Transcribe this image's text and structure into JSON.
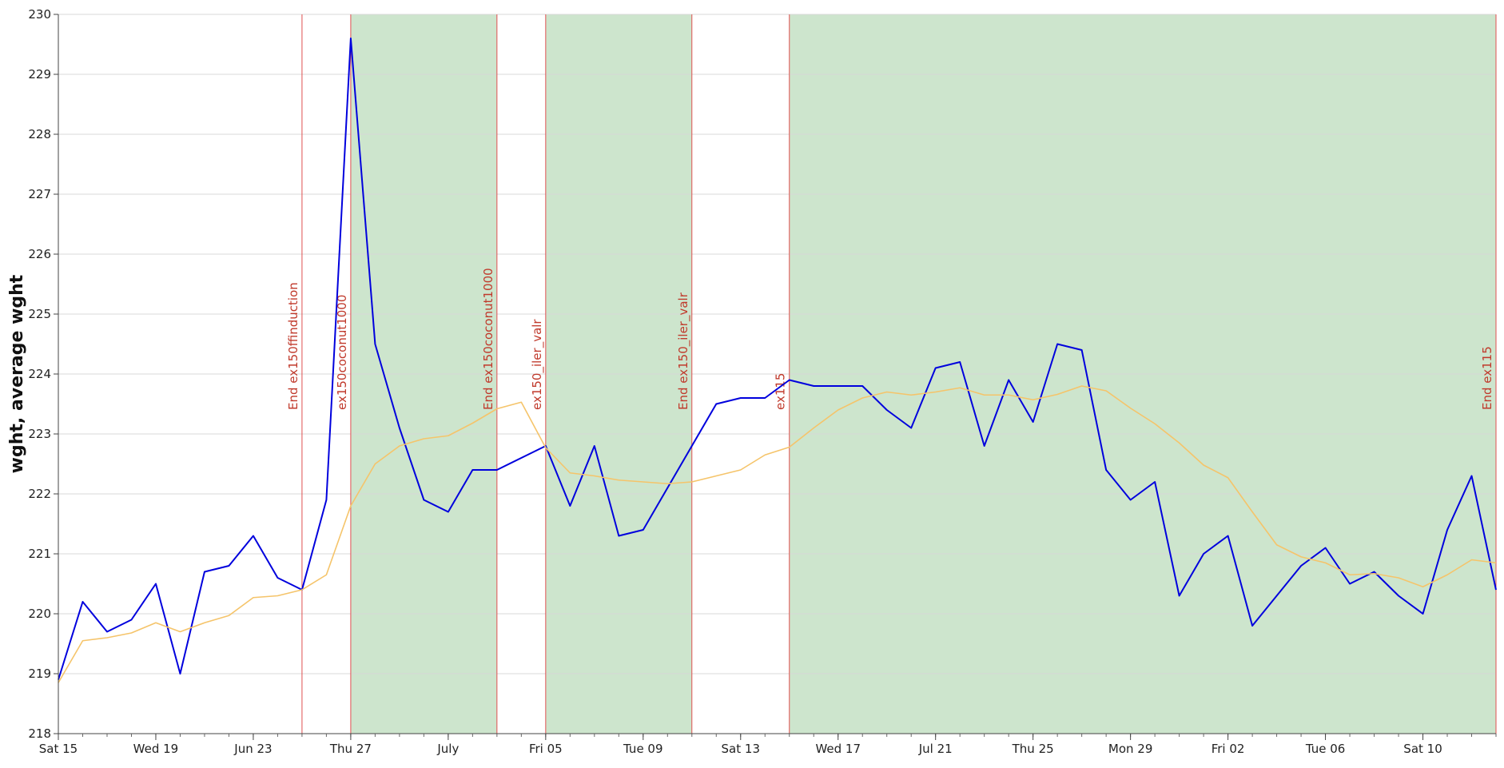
{
  "chart_data": {
    "type": "line",
    "ylabel": "wght, average wght",
    "ylim": [
      218,
      230
    ],
    "yticks": [
      218,
      219,
      220,
      221,
      222,
      223,
      224,
      225,
      226,
      227,
      228,
      229,
      230
    ],
    "grid": true,
    "x_start": "2023-06-15",
    "x_end": "2023-08-13",
    "x_tick_dates": [
      "2023-06-15",
      "2023-06-19",
      "2023-06-23",
      "2023-06-27",
      "2023-07-01",
      "2023-07-05",
      "2023-07-09",
      "2023-07-13",
      "2023-07-17",
      "2023-07-21",
      "2023-07-25",
      "2023-07-29",
      "2023-08-02",
      "2023-08-06",
      "2023-08-10"
    ],
    "x_tick_labels": [
      "Sat 15",
      "Wed 19",
      "Jun 23",
      "Thu 27",
      "July",
      "Fri 05",
      "Tue 09",
      "Sat 13",
      "Wed 17",
      "Jul 21",
      "Thu 25",
      "Mon 29",
      "Fri 02",
      "Tue 06",
      "Sat 10"
    ],
    "series": [
      {
        "color": "#0000dd",
        "points": [
          [
            "2023-06-15",
            218.9
          ],
          [
            "2023-06-16",
            220.2
          ],
          [
            "2023-06-17",
            219.7
          ],
          [
            "2023-06-18",
            219.9
          ],
          [
            "2023-06-19",
            220.5
          ],
          [
            "2023-06-20",
            219.0
          ],
          [
            "2023-06-21",
            220.7
          ],
          [
            "2023-06-22",
            220.8
          ],
          [
            "2023-06-23",
            221.3
          ],
          [
            "2023-06-24",
            220.6
          ],
          [
            "2023-06-25",
            220.4
          ],
          [
            "2023-06-26",
            221.9
          ],
          [
            "2023-06-27",
            229.6
          ],
          [
            "2023-06-28",
            224.5
          ],
          [
            "2023-06-29",
            223.1
          ],
          [
            "2023-06-30",
            221.9
          ],
          [
            "2023-07-01",
            221.7
          ],
          [
            "2023-07-02",
            222.4
          ],
          [
            "2023-07-03",
            222.4
          ],
          [
            "2023-07-05",
            222.8
          ],
          [
            "2023-07-06",
            221.8
          ],
          [
            "2023-07-07",
            222.8
          ],
          [
            "2023-07-08",
            221.3
          ],
          [
            "2023-07-09",
            221.4
          ],
          [
            "2023-07-12",
            223.5
          ],
          [
            "2023-07-13",
            223.6
          ],
          [
            "2023-07-14",
            223.6
          ],
          [
            "2023-07-15",
            223.9
          ],
          [
            "2023-07-16",
            223.8
          ],
          [
            "2023-07-17",
            223.8
          ],
          [
            "2023-07-18",
            223.8
          ],
          [
            "2023-07-19",
            223.4
          ],
          [
            "2023-07-20",
            223.1
          ],
          [
            "2023-07-21",
            224.1
          ],
          [
            "2023-07-22",
            224.2
          ],
          [
            "2023-07-23",
            222.8
          ],
          [
            "2023-07-24",
            223.9
          ],
          [
            "2023-07-25",
            223.2
          ],
          [
            "2023-07-26",
            224.5
          ],
          [
            "2023-07-27",
            224.4
          ],
          [
            "2023-07-28",
            222.4
          ],
          [
            "2023-07-29",
            221.9
          ],
          [
            "2023-07-30",
            222.2
          ],
          [
            "2023-07-31",
            220.3
          ],
          [
            "2023-08-01",
            221.0
          ],
          [
            "2023-08-02",
            221.3
          ],
          [
            "2023-08-03",
            219.8
          ],
          [
            "2023-08-05",
            220.8
          ],
          [
            "2023-08-06",
            221.1
          ],
          [
            "2023-08-07",
            220.5
          ],
          [
            "2023-08-08",
            220.7
          ],
          [
            "2023-08-09",
            220.3
          ],
          [
            "2023-08-10",
            220.0
          ],
          [
            "2023-08-11",
            221.4
          ],
          [
            "2023-08-12",
            222.3
          ],
          [
            "2023-08-13",
            220.4
          ]
        ]
      },
      {
        "color": "#f5c46a",
        "points": [
          [
            "2023-06-15",
            218.85
          ],
          [
            "2023-06-16",
            219.55
          ],
          [
            "2023-06-17",
            219.6
          ],
          [
            "2023-06-18",
            219.68
          ],
          [
            "2023-06-19",
            219.85
          ],
          [
            "2023-06-20",
            219.7
          ],
          [
            "2023-06-21",
            219.85
          ],
          [
            "2023-06-22",
            219.97
          ],
          [
            "2023-06-23",
            220.27
          ],
          [
            "2023-06-24",
            220.3
          ],
          [
            "2023-06-25",
            220.4
          ],
          [
            "2023-06-26",
            220.65
          ],
          [
            "2023-06-27",
            221.8
          ],
          [
            "2023-06-28",
            222.5
          ],
          [
            "2023-06-29",
            222.8
          ],
          [
            "2023-06-30",
            222.92
          ],
          [
            "2023-07-01",
            222.97
          ],
          [
            "2023-07-02",
            223.18
          ],
          [
            "2023-07-03",
            223.42
          ],
          [
            "2023-07-04",
            223.53
          ],
          [
            "2023-07-05",
            222.77
          ],
          [
            "2023-07-06",
            222.35
          ],
          [
            "2023-07-07",
            222.3
          ],
          [
            "2023-07-08",
            222.23
          ],
          [
            "2023-07-09",
            222.2
          ],
          [
            "2023-07-10",
            222.17
          ],
          [
            "2023-07-11",
            222.2
          ],
          [
            "2023-07-12",
            222.3
          ],
          [
            "2023-07-13",
            222.4
          ],
          [
            "2023-07-14",
            222.65
          ],
          [
            "2023-07-15",
            222.78
          ],
          [
            "2023-07-16",
            223.1
          ],
          [
            "2023-07-17",
            223.4
          ],
          [
            "2023-07-18",
            223.6
          ],
          [
            "2023-07-19",
            223.7
          ],
          [
            "2023-07-20",
            223.65
          ],
          [
            "2023-07-21",
            223.7
          ],
          [
            "2023-07-22",
            223.77
          ],
          [
            "2023-07-23",
            223.65
          ],
          [
            "2023-07-24",
            223.65
          ],
          [
            "2023-07-25",
            223.57
          ],
          [
            "2023-07-26",
            223.66
          ],
          [
            "2023-07-27",
            223.8
          ],
          [
            "2023-07-28",
            223.72
          ],
          [
            "2023-07-29",
            223.43
          ],
          [
            "2023-07-30",
            223.17
          ],
          [
            "2023-07-31",
            222.85
          ],
          [
            "2023-08-01",
            222.48
          ],
          [
            "2023-08-02",
            222.27
          ],
          [
            "2023-08-03",
            221.7
          ],
          [
            "2023-08-04",
            221.15
          ],
          [
            "2023-08-05",
            220.95
          ],
          [
            "2023-08-06",
            220.85
          ],
          [
            "2023-08-07",
            220.65
          ],
          [
            "2023-08-08",
            220.67
          ],
          [
            "2023-08-09",
            220.6
          ],
          [
            "2023-08-10",
            220.45
          ],
          [
            "2023-08-11",
            220.65
          ],
          [
            "2023-08-12",
            220.9
          ],
          [
            "2023-08-13",
            220.85
          ]
        ]
      }
    ],
    "shaded_regions": [
      {
        "from": "2023-06-27",
        "to": "2023-07-03",
        "color": "#cde5cd"
      },
      {
        "from": "2023-07-05",
        "to": "2023-07-11",
        "color": "#cde5cd"
      },
      {
        "from": "2023-07-15",
        "to": "2023-08-13",
        "color": "#cde5cd"
      }
    ],
    "events": [
      {
        "date": "2023-06-25",
        "label": "End ex150ffinduction",
        "side": "left"
      },
      {
        "date": "2023-06-27",
        "label": "ex150coconut1000",
        "side": "left"
      },
      {
        "date": "2023-07-03",
        "label": "End ex150coconut1000",
        "side": "left"
      },
      {
        "date": "2023-07-05",
        "label": "ex150_iler_valr",
        "side": "left"
      },
      {
        "date": "2023-07-11",
        "label": "End ex150_iler_valr",
        "side": "left"
      },
      {
        "date": "2023-07-15",
        "label": "ex115",
        "side": "left"
      },
      {
        "date": "2023-08-13",
        "label": "End ex115",
        "side": "left"
      }
    ],
    "event_line_color": "#e05050",
    "event_text_color": "#c0392b"
  }
}
